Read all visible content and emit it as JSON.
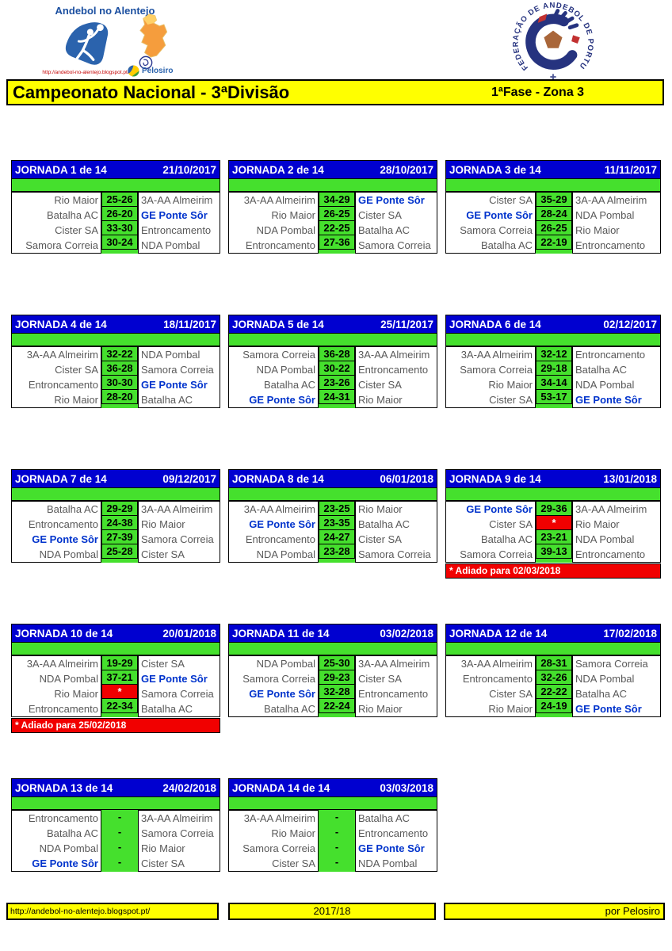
{
  "brand": {
    "title": "Andebol no Alentejo",
    "url": "http://andebol-no-alentejo.blogspot.pt/",
    "pelosiro": "Pelosiro"
  },
  "federation": {
    "ring_text": "FEDERAÇÃO DE ANDEBOL DE PORTUGAL"
  },
  "title_bar": {
    "title": "Campeonato Nacional - 3ªDivisão",
    "phase": "1ªFase - Zona 3"
  },
  "colors": {
    "header_blue": "#0000d0",
    "score_green": "#45e02d",
    "postponed_red": "#f10000",
    "bar_yellow": "#ffff00",
    "highlight_team_blue": "#0033cc"
  },
  "jornadas": [
    {
      "title": "JORNADA 1 de 14",
      "date": "21/10/2017",
      "matches": [
        {
          "home": "Rio Maior",
          "score": "25-26",
          "away": "3A-AA Almeirim"
        },
        {
          "home": "Batalha AC",
          "score": "26-20",
          "away": "GE Ponte Sôr",
          "away_blue": true
        },
        {
          "home": "Cister SA",
          "score": "33-30",
          "away": "Entroncamento"
        },
        {
          "home": "Samora Correia",
          "score": "30-24",
          "away": "NDA Pombal"
        }
      ]
    },
    {
      "title": "JORNADA 2 de 14",
      "date": "28/10/2017",
      "matches": [
        {
          "home": "3A-AA Almeirim",
          "score": "34-29",
          "away": "GE Ponte Sôr",
          "away_blue": true
        },
        {
          "home": "Rio Maior",
          "score": "26-25",
          "away": "Cister SA"
        },
        {
          "home": "NDA Pombal",
          "score": "22-25",
          "away": "Batalha AC"
        },
        {
          "home": "Entroncamento",
          "score": "27-36",
          "away": "Samora Correia"
        }
      ]
    },
    {
      "title": "JORNADA 3 de 14",
      "date": "11/11/2017",
      "matches": [
        {
          "home": "Cister SA",
          "score": "35-29",
          "away": "3A-AA Almeirim"
        },
        {
          "home": "GE Ponte Sôr",
          "home_blue": true,
          "score": "28-24",
          "away": "NDA Pombal"
        },
        {
          "home": "Samora Correia",
          "score": "26-25",
          "away": "Rio Maior"
        },
        {
          "home": "Batalha AC",
          "score": "22-19",
          "away": "Entroncamento"
        }
      ]
    },
    {
      "title": "JORNADA 4 de 14",
      "date": "18/11/2017",
      "matches": [
        {
          "home": "3A-AA Almeirim",
          "score": "32-22",
          "away": "NDA Pombal"
        },
        {
          "home": "Cister SA",
          "score": "36-28",
          "away": "Samora Correia"
        },
        {
          "home": "Entroncamento",
          "score": "30-30",
          "away": "GE Ponte Sôr",
          "away_blue": true
        },
        {
          "home": "Rio Maior",
          "score": "28-20",
          "away": "Batalha AC"
        }
      ]
    },
    {
      "title": "JORNADA 5 de 14",
      "date": "25/11/2017",
      "matches": [
        {
          "home": "Samora Correia",
          "score": "36-28",
          "away": "3A-AA Almeirim"
        },
        {
          "home": "NDA Pombal",
          "score": "30-22",
          "away": "Entroncamento"
        },
        {
          "home": "Batalha AC",
          "score": "23-26",
          "away": "Cister SA"
        },
        {
          "home": "GE Ponte Sôr",
          "home_blue": true,
          "score": "24-31",
          "away": "Rio Maior"
        }
      ]
    },
    {
      "title": "JORNADA 6 de 14",
      "date": "02/12/2017",
      "matches": [
        {
          "home": "3A-AA Almeirim",
          "score": "32-12",
          "away": "Entroncamento"
        },
        {
          "home": "Samora Correia",
          "score": "29-18",
          "away": "Batalha AC"
        },
        {
          "home": "Rio Maior",
          "score": "34-14",
          "away": "NDA Pombal"
        },
        {
          "home": "Cister SA",
          "score": "53-17",
          "away": "GE Ponte Sôr",
          "away_blue": true
        }
      ]
    },
    {
      "title": "JORNADA 7 de 14",
      "date": "09/12/2017",
      "matches": [
        {
          "home": "Batalha AC",
          "score": "29-29",
          "away": "3A-AA Almeirim"
        },
        {
          "home": "Entroncamento",
          "score": "24-38",
          "away": "Rio Maior"
        },
        {
          "home": "GE Ponte Sôr",
          "home_blue": true,
          "score": "27-39",
          "away": "Samora Correia"
        },
        {
          "home": "NDA Pombal",
          "score": "25-28",
          "away": "Cister SA"
        }
      ]
    },
    {
      "title": "JORNADA 8 de 14",
      "date": "06/01/2018",
      "matches": [
        {
          "home": "3A-AA Almeirim",
          "score": "23-25",
          "away": "Rio Maior"
        },
        {
          "home": "GE Ponte Sôr",
          "home_blue": true,
          "score": "23-35",
          "away": "Batalha AC"
        },
        {
          "home": "Entroncamento",
          "score": "24-27",
          "away": "Cister SA"
        },
        {
          "home": "NDA Pombal",
          "score": "23-28",
          "away": "Samora Correia"
        }
      ]
    },
    {
      "title": "JORNADA 9 de 14",
      "date": "13/01/2018",
      "matches": [
        {
          "home": "GE Ponte Sôr",
          "home_blue": true,
          "score": "29-36",
          "away": "3A-AA Almeirim"
        },
        {
          "home": "Cister SA",
          "score": "*",
          "postponed": true,
          "away": "Rio Maior"
        },
        {
          "home": "Batalha AC",
          "score": "23-21",
          "away": "NDA Pombal"
        },
        {
          "home": "Samora Correia",
          "score": "39-13",
          "away": "Entroncamento"
        }
      ],
      "note": "* Adiado para 02/03/2018"
    },
    {
      "title": "JORNADA 10 de 14",
      "date": "20/01/2018",
      "matches": [
        {
          "home": "3A-AA Almeirim",
          "score": "19-29",
          "away": "Cister SA"
        },
        {
          "home": "NDA Pombal",
          "score": "37-21",
          "away": "GE Ponte Sôr",
          "away_blue": true
        },
        {
          "home": "Rio Maior",
          "score": "*",
          "postponed": true,
          "away": "Samora Correia"
        },
        {
          "home": "Entroncamento",
          "score": "22-34",
          "away": "Batalha AC"
        }
      ],
      "note": "* Adiado para 25/02/2018"
    },
    {
      "title": "JORNADA 11 de 14",
      "date": "03/02/2018",
      "matches": [
        {
          "home": "NDA Pombal",
          "score": "25-30",
          "away": "3A-AA Almeirim"
        },
        {
          "home": "Samora Correia",
          "score": "29-23",
          "away": "Cister SA"
        },
        {
          "home": "GE Ponte Sôr",
          "home_blue": true,
          "score": "32-28",
          "away": "Entroncamento"
        },
        {
          "home": "Batalha AC",
          "score": "22-24",
          "away": "Rio Maior"
        }
      ]
    },
    {
      "title": "JORNADA 12 de 14",
      "date": "17/02/2018",
      "matches": [
        {
          "home": "3A-AA Almeirim",
          "score": "28-31",
          "away": "Samora Correia"
        },
        {
          "home": "Entroncamento",
          "score": "32-26",
          "away": "NDA Pombal"
        },
        {
          "home": "Cister SA",
          "score": "22-22",
          "away": "Batalha AC"
        },
        {
          "home": "Rio Maior",
          "score": "24-19",
          "away": "GE Ponte Sôr",
          "away_blue": true
        }
      ]
    },
    {
      "title": "JORNADA 13 de 14",
      "date": "24/02/2018",
      "matches": [
        {
          "home": "Entroncamento",
          "score": "-",
          "unplayed": true,
          "away": "3A-AA Almeirim"
        },
        {
          "home": "Batalha AC",
          "score": "-",
          "unplayed": true,
          "away": "Samora Correia"
        },
        {
          "home": "NDA Pombal",
          "score": "-",
          "unplayed": true,
          "away": "Rio Maior"
        },
        {
          "home": "GE Ponte Sôr",
          "home_blue": true,
          "score": "-",
          "unplayed": true,
          "away": "Cister SA"
        }
      ]
    },
    {
      "title": "JORNADA 14 de 14",
      "date": "03/03/2018",
      "matches": [
        {
          "home": "3A-AA Almeirim",
          "score": "-",
          "unplayed": true,
          "away": "Batalha AC"
        },
        {
          "home": "Rio Maior",
          "score": "-",
          "unplayed": true,
          "away": "Entroncamento"
        },
        {
          "home": "Samora Correia",
          "score": "-",
          "unplayed": true,
          "away": "GE Ponte Sôr",
          "away_blue": true
        },
        {
          "home": "Cister SA",
          "score": "-",
          "unplayed": true,
          "away": "NDA Pombal"
        }
      ]
    }
  ],
  "footer": {
    "url": "http://andebol-no-alentejo.blogspot.pt/",
    "season": "2017/18",
    "credit": "por Pelosiro"
  }
}
